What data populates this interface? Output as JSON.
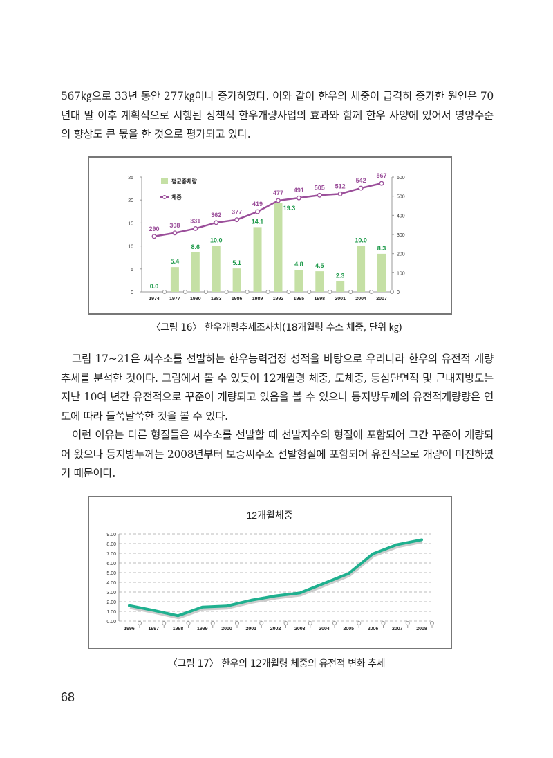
{
  "paragraphs": [
    "567㎏으로 33년 동안 277㎏이나 증가하였다. 이와 같이 한우의 체중이 급격히 증가한 원인은 70년대 말 이후 계획적으로 시행된 정책적 한우개량사업의 효과와 함께 한우 사양에 있어서 영양수준의 향상도 큰 몫을 한 것으로 평가되고 있다.",
    "그림 17~21은 씨수소를 선발하는 한우능력검정 성적을 바탕으로 우리나라 한우의 유전적 개량 추세를 분석한 것이다. 그림에서 볼 수 있듯이 12개월령 체중, 도체중, 등심단면적 및 근내지방도는 지난 10여 년간 유전적으로 꾸준이 개량되고 있음을 볼 수 있으나 등지방두께의 유전적개량량은 연도에 따라 들쑥날쑥한 것을 볼 수 있다.",
    "이런 이유는 다른 형질들은 씨수소를 선발할 때 선발지수의 형질에 포함되어 그간 꾸준이 개량되어 왔으나 등지방두께는 2008년부터 보증씨수소 선발형질에 포함되어 유전적으로 개량이 미진하였기 때문이다."
  ],
  "captions": {
    "fig16": "〈그림 16〉 한우개량추세조사치(18개월령 수소 체중, 단위 ㎏)",
    "fig17": "〈그림 17〉 한우의 12개월령 체중의 유전적 변화 추세"
  },
  "page_number": "68",
  "chart_data": [
    {
      "type": "bar+line",
      "title": "",
      "categories": [
        "1974",
        "1977",
        "1980",
        "1983",
        "1986",
        "1989",
        "1992",
        "1995",
        "1998",
        "2001",
        "2004",
        "2007"
      ],
      "series": [
        {
          "name": "평균증체량",
          "type": "bar",
          "axis": "left",
          "values": [
            0.0,
            5.4,
            8.6,
            10.0,
            5.1,
            14.1,
            19.3,
            4.8,
            4.5,
            2.3,
            10.0,
            8.3
          ],
          "labels": [
            "0.0",
            "5.4",
            "8.6",
            "10.0",
            "5.1",
            "14.1",
            "19.3",
            "4.8",
            "4.5",
            "2.3",
            "10.0",
            "8.3"
          ],
          "color": "#c5e0a5",
          "label_color": "#1e9a4a"
        },
        {
          "name": "체중",
          "type": "line",
          "axis": "right",
          "values": [
            290,
            308,
            331,
            362,
            377,
            419,
            477,
            491,
            505,
            512,
            542,
            567
          ],
          "color": "#9b4f9a"
        }
      ],
      "left_axis": {
        "range": [
          0,
          25
        ],
        "ticks": [
          "0",
          "5",
          "10",
          "15",
          "20",
          "25"
        ]
      },
      "right_axis": {
        "range": [
          0,
          600
        ],
        "ticks": [
          "0",
          "100",
          "200",
          "300",
          "400",
          "500",
          "600"
        ]
      },
      "legend": "top-left"
    },
    {
      "type": "line",
      "title": "12개월체중",
      "categories": [
        "1996",
        "1997",
        "1998",
        "1999",
        "2000",
        "2001",
        "2002",
        "2003",
        "2004",
        "2005",
        "2006",
        "2007",
        "2008"
      ],
      "values": [
        1.6,
        1.1,
        0.55,
        1.45,
        1.55,
        2.15,
        2.6,
        2.9,
        3.9,
        4.9,
        6.95,
        7.9,
        8.4
      ],
      "ylim": [
        0,
        9
      ],
      "yticks": [
        "0.00",
        "1.00",
        "2.00",
        "3.00",
        "4.00",
        "5.00",
        "6.00",
        "7.00",
        "8.00",
        "9.00"
      ],
      "grid": true,
      "color": "#1fb08f"
    }
  ]
}
